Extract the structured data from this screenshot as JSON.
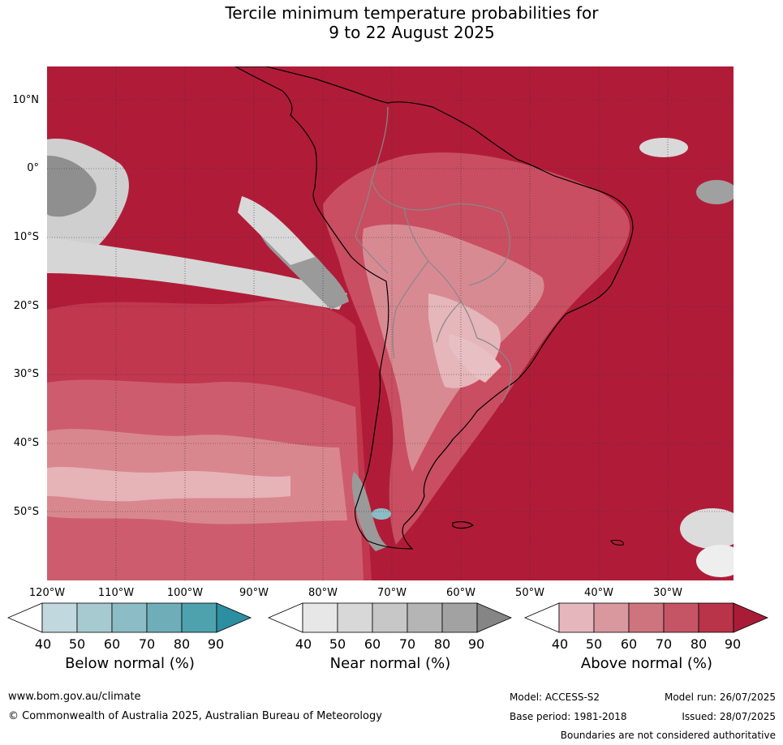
{
  "title": {
    "line1": "Tercile minimum temperature probabilities for",
    "line2": "9 to 22 August 2025"
  },
  "map": {
    "lat_labels": [
      "10°N",
      "0°",
      "10°S",
      "20°S",
      "30°S",
      "40°S",
      "50°S"
    ],
    "lon_labels": [
      "120°W",
      "110°W",
      "100°W",
      "90°W",
      "80°W",
      "70°W",
      "60°W",
      "50°W",
      "40°W",
      "30°W"
    ],
    "palette": {
      "above_90": "#b01c38",
      "above_80": "#c1374e",
      "above_70": "#cd5d6e",
      "above_60": "#d9878f",
      "above_50": "#e6b3b7",
      "near_50": "#dadada",
      "near_70": "#b8b8b8",
      "near_90": "#8a8a8a",
      "below_60": "#8bbcc6"
    }
  },
  "legends": [
    {
      "title": "Below normal (%)",
      "ticks": [
        "40",
        "50",
        "60",
        "70",
        "80",
        "90"
      ],
      "colors": [
        "#ffffff",
        "#c0d8de",
        "#a7cad1",
        "#8cbcc5",
        "#6faeb9",
        "#4ea2ae",
        "#2c8ea1"
      ]
    },
    {
      "title": "Near normal (%)",
      "ticks": [
        "40",
        "50",
        "60",
        "70",
        "80",
        "90"
      ],
      "colors": [
        "#ffffff",
        "#e7e7e7",
        "#d8d8d8",
        "#c7c7c7",
        "#b5b5b5",
        "#a2a2a2",
        "#858585"
      ]
    },
    {
      "title": "Above normal (%)",
      "ticks": [
        "40",
        "50",
        "60",
        "70",
        "80",
        "90"
      ],
      "colors": [
        "#ffffff",
        "#e5b7bc",
        "#d9979e",
        "#cd747e",
        "#c55565",
        "#b93349",
        "#a81c38"
      ]
    }
  ],
  "footer": {
    "website": "www.bom.gov.au/climate",
    "copyright": "© Commonwealth of Australia 2025, Australian Bureau of Meteorology",
    "model": "Model: ACCESS-S2",
    "base_period": "Base period: 1981-2018",
    "model_run": "Model run: 26/07/2025",
    "issued": "Issued: 28/07/2025",
    "disclaimer": "Boundaries are not considered authoritative"
  }
}
